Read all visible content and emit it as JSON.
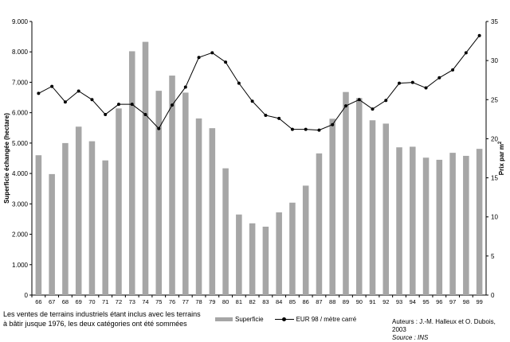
{
  "chart_data": {
    "type": "bar",
    "combo": "bar + line (secondary axis)",
    "categories": [
      "66",
      "67",
      "68",
      "69",
      "70",
      "71",
      "72",
      "73",
      "74",
      "75",
      "76",
      "77",
      "78",
      "79",
      "80",
      "81",
      "82",
      "83",
      "84",
      "85",
      "86",
      "87",
      "88",
      "89",
      "90",
      "91",
      "92",
      "93",
      "94",
      "95",
      "96",
      "97",
      "98",
      "99"
    ],
    "series": [
      {
        "name": "Superficie",
        "type": "bar",
        "axis": "left",
        "values": [
          4600,
          3980,
          5000,
          5540,
          5060,
          4430,
          6140,
          8020,
          8330,
          6720,
          7220,
          6660,
          5810,
          5490,
          4170,
          2650,
          2360,
          2250,
          2720,
          3040,
          3600,
          4660,
          5800,
          6680,
          6480,
          5750,
          5640,
          4860,
          4880,
          4520,
          4450,
          4680,
          4580,
          4810
        ]
      },
      {
        "name": "EUR 98 / mètre carré",
        "type": "line",
        "axis": "right",
        "values": [
          25.8,
          26.7,
          24.7,
          26.1,
          25.0,
          23.1,
          24.4,
          24.4,
          23.1,
          21.3,
          24.3,
          26.6,
          30.4,
          31.0,
          29.8,
          27.1,
          24.8,
          23.0,
          22.6,
          21.2,
          21.2,
          21.1,
          21.8,
          24.2,
          25.0,
          23.8,
          24.9,
          27.1,
          27.2,
          26.5,
          27.8,
          28.8,
          31.0,
          33.2
        ]
      }
    ],
    "title": "",
    "ylabel": "Superficie échangée (hectare)",
    "y2label_main": "Prix par m",
    "y2label_sup": "2",
    "ylim": [
      0,
      9000
    ],
    "y2lim": [
      0,
      35
    ],
    "yticks": [
      "0",
      "1.000",
      "2.000",
      "3.000",
      "4.000",
      "5.000",
      "6.000",
      "7.000",
      "8.000",
      "9.000"
    ],
    "y2ticks": [
      "0",
      "5",
      "10",
      "15",
      "20",
      "25",
      "30",
      "35"
    ],
    "legend_position": "bottom-center",
    "grid": false
  },
  "note": "Les ventes de terrains industriels étant inclus avec les terrains à bâtir jusque 1976, les deux catégories ont été sommées",
  "credit": {
    "authors": "Auteurs : J.-M. Halleux et O. Dubois, 2003",
    "source": "Source : INS"
  },
  "colors": {
    "bar": "#a6a6a6",
    "line": "#000000",
    "axis": "#000000"
  }
}
